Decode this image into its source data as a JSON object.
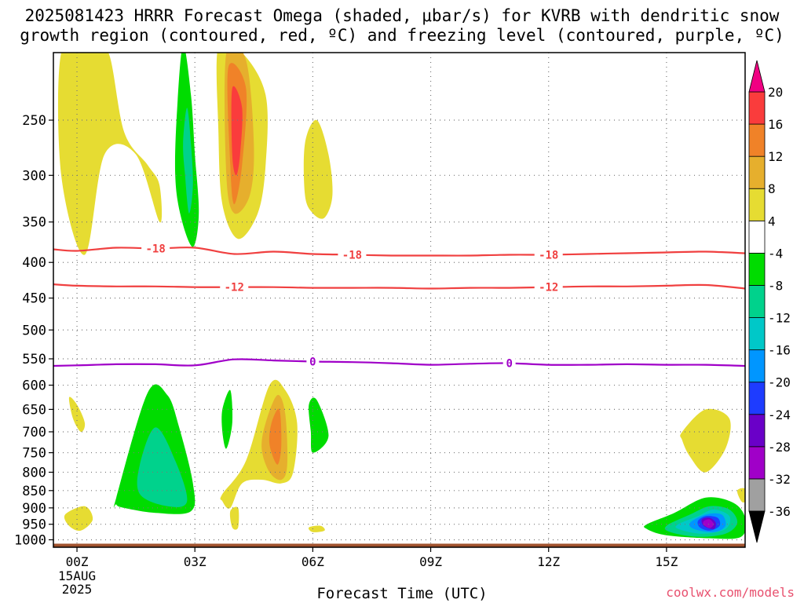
{
  "title_line1": "2025081423 HRRR Forecast Omega (shaded, μbar/s) for KVRB with dendritic snow",
  "title_line2": "growth region (contoured, red, ºC) and freezing level (contoured, purple, ºC)",
  "credit": "coolwx.com/models",
  "chart_data": {
    "type": "heatmap",
    "title": "2025081423 HRRR Forecast Omega (shaded, μbar/s) for KVRB with dendritic snow growth region (contoured, red, ºC) and freezing level (contoured, purple, ºC)",
    "xlabel": "Forecast Time (UTC)",
    "ylabel": "",
    "x_range_hours": [
      -0.6,
      17.0
    ],
    "x_ticks": [
      {
        "hour": 0,
        "label": "00Z",
        "sublabels": [
          "15AUG",
          "2025"
        ]
      },
      {
        "hour": 3,
        "label": "03Z"
      },
      {
        "hour": 6,
        "label": "06Z"
      },
      {
        "hour": 9,
        "label": "09Z"
      },
      {
        "hour": 12,
        "label": "12Z"
      },
      {
        "hour": 15,
        "label": "15Z"
      }
    ],
    "y_axis": {
      "scale": "log",
      "reversed": true,
      "range_mb": [
        200,
        1025
      ],
      "ticks": [
        250,
        300,
        350,
        400,
        450,
        500,
        550,
        600,
        650,
        700,
        750,
        800,
        850,
        900,
        950,
        1000
      ]
    },
    "grid": true,
    "colorbar": {
      "levels": [
        -36,
        -32,
        -28,
        -24,
        -20,
        -16,
        -12,
        -8,
        -4,
        4,
        8,
        12,
        16,
        20
      ],
      "colors": [
        "#a0a0a0",
        "#a000c8",
        "#6a00c8",
        "#1e3cff",
        "#0096ff",
        "#00c8c8",
        "#00d28c",
        "#00dc00",
        "#ffffff",
        "#e6dc32",
        "#e6af2d",
        "#f08228",
        "#fa3c3c",
        "#f00082"
      ],
      "under_color": "#000000",
      "over_color": "#f00082"
    },
    "contours": [
      {
        "name": "-18",
        "color": "#f04040",
        "hours": [
          -0.6,
          0,
          1,
          2,
          3,
          4,
          5,
          6,
          7,
          8,
          9,
          10,
          11,
          12,
          13,
          14,
          15,
          16,
          17
        ],
        "pressure": [
          383,
          385,
          381,
          382,
          381,
          389,
          386,
          389,
          390,
          391,
          391,
          391,
          390,
          390,
          389,
          388,
          387,
          386,
          388
        ],
        "label_hours": [
          2,
          7,
          12
        ]
      },
      {
        "name": "-12",
        "color": "#f04040",
        "hours": [
          -0.6,
          0,
          1,
          2,
          3,
          4,
          5,
          6,
          7,
          8,
          9,
          10,
          11,
          12,
          13,
          14,
          15,
          16,
          17
        ],
        "pressure": [
          430,
          432,
          433,
          433,
          434,
          434,
          434,
          435,
          435,
          435,
          436,
          435,
          435,
          434,
          433,
          433,
          432,
          431,
          436
        ],
        "label_hours": [
          4,
          12
        ]
      },
      {
        "name": "0",
        "color": "#a000c8",
        "hours": [
          -0.6,
          0,
          1,
          2,
          3,
          4,
          5,
          6,
          7,
          8,
          9,
          10,
          11,
          12,
          13,
          14,
          15,
          16,
          17
        ],
        "pressure": [
          563,
          562,
          560,
          560,
          562,
          551,
          553,
          555,
          556,
          558,
          561,
          559,
          558,
          561,
          561,
          560,
          561,
          561,
          563
        ],
        "label_hours": [
          6,
          11
        ]
      }
    ],
    "omega_areas": [
      {
        "value": 4,
        "hours": [
          -0.4,
          0.3,
          0.8,
          1.2,
          1.8,
          2.1,
          2.1,
          1.5,
          0.7,
          0.2,
          -0.4
        ],
        "pressure": [
          200,
          200,
          200,
          260,
          290,
          310,
          350,
          280,
          280,
          390,
          300
        ]
      },
      {
        "value": -4,
        "hours": [
          2.7,
          2.9,
          3.0,
          3.1,
          2.95,
          2.65,
          2.5,
          2.55
        ],
        "pressure": [
          195,
          230,
          280,
          340,
          380,
          345,
          300,
          240
        ]
      },
      {
        "value": -8,
        "hours": [
          2.8,
          2.9,
          2.95,
          2.85,
          2.75,
          2.7
        ],
        "pressure": [
          240,
          270,
          310,
          340,
          300,
          270
        ]
      },
      {
        "value": 4,
        "hours": [
          3.6,
          4.2,
          4.8,
          4.8,
          4.6,
          4.1,
          3.7,
          3.6
        ],
        "pressure": [
          195,
          200,
          230,
          290,
          340,
          370,
          330,
          260
        ]
      },
      {
        "value": 8,
        "hours": [
          3.8,
          4.3,
          4.5,
          4.4,
          4.0,
          3.8
        ],
        "pressure": [
          200,
          205,
          270,
          320,
          340,
          300
        ]
      },
      {
        "value": 12,
        "hours": [
          3.85,
          4.3,
          4.2,
          4.0,
          3.9
        ],
        "pressure": [
          210,
          225,
          290,
          330,
          290
        ]
      },
      {
        "value": 16,
        "hours": [
          3.95,
          4.2,
          4.15,
          4.05,
          3.95
        ],
        "pressure": [
          225,
          240,
          280,
          300,
          280
        ]
      },
      {
        "value": 4,
        "hours": [
          5.8,
          6.1,
          6.4,
          6.5,
          6.3,
          6.0,
          5.8
        ],
        "pressure": [
          270,
          250,
          280,
          320,
          345,
          340,
          320
        ]
      },
      {
        "value": 4,
        "hours": [
          -0.2,
          0.0,
          0.2,
          0.1,
          -0.1
        ],
        "pressure": [
          625,
          640,
          680,
          700,
          670
        ]
      },
      {
        "value": -4,
        "hours": [
          1.0,
          1.8,
          2.3,
          2.6,
          2.95,
          2.9,
          2.0,
          1.2,
          1.0
        ],
        "pressure": [
          870,
          615,
          620,
          690,
          830,
          910,
          915,
          900,
          890
        ]
      },
      {
        "value": -8,
        "hours": [
          1.6,
          2.0,
          2.5,
          2.8,
          2.3,
          1.6
        ],
        "pressure": [
          780,
          690,
          770,
          880,
          895,
          860
        ]
      },
      {
        "value": -4,
        "hours": [
          3.7,
          3.9,
          3.95,
          3.8,
          3.7
        ],
        "pressure": [
          650,
          610,
          680,
          740,
          700
        ]
      },
      {
        "value": 4,
        "hours": [
          3.7,
          4.3,
          4.9,
          5.3,
          5.6,
          5.5,
          5.2,
          4.7,
          4.2,
          3.9,
          3.7
        ],
        "pressure": [
          860,
          770,
          600,
          610,
          680,
          800,
          830,
          820,
          830,
          900,
          880
        ]
      },
      {
        "value": 8,
        "hours": [
          4.8,
          5.1,
          5.3,
          5.35,
          5.2,
          4.9,
          4.7
        ],
        "pressure": [
          680,
          620,
          660,
          780,
          820,
          800,
          740
        ]
      },
      {
        "value": 12,
        "hours": [
          4.95,
          5.15,
          5.2,
          5.1,
          4.9
        ],
        "pressure": [
          680,
          650,
          730,
          780,
          730
        ]
      },
      {
        "value": 4,
        "hours": [
          3.9,
          4.1,
          4.1,
          3.95
        ],
        "pressure": [
          910,
          900,
          960,
          960
        ]
      },
      {
        "value": -4,
        "hours": [
          5.9,
          6.1,
          6.4,
          6.0,
          5.95
        ],
        "pressure": [
          640,
          630,
          710,
          750,
          700
        ]
      },
      {
        "value": 4,
        "hours": [
          -0.3,
          0.2,
          0.4,
          0.1,
          -0.2
        ],
        "pressure": [
          920,
          895,
          935,
          970,
          955
        ]
      },
      {
        "value": 4,
        "hours": [
          5.9,
          6.2,
          6.3,
          6.0
        ],
        "pressure": [
          960,
          955,
          970,
          975
        ]
      },
      {
        "value": 4,
        "hours": [
          15.4,
          16.0,
          16.6,
          16.5,
          16.0,
          15.6,
          15.4
        ],
        "pressure": [
          700,
          650,
          670,
          740,
          800,
          760,
          720
        ]
      },
      {
        "value": 4,
        "hours": [
          16.8,
          17.0,
          17.0,
          16.9
        ],
        "pressure": [
          850,
          845,
          880,
          880
        ]
      },
      {
        "value": -4,
        "hours": [
          14.5,
          15.2,
          16.0,
          16.7,
          17.0,
          16.9,
          16.1,
          15.0,
          14.5
        ],
        "pressure": [
          950,
          915,
          870,
          885,
          930,
          990,
          995,
          985,
          965
        ]
      },
      {
        "value": -8,
        "hours": [
          15.0,
          15.6,
          16.1,
          16.6,
          16.8,
          16.5,
          15.8,
          15.1
        ],
        "pressure": [
          955,
          920,
          895,
          905,
          945,
          980,
          990,
          975
        ]
      },
      {
        "value": -12,
        "hours": [
          15.3,
          15.8,
          16.2,
          16.6,
          16.5,
          15.9,
          15.3
        ],
        "pressure": [
          950,
          925,
          905,
          925,
          965,
          980,
          965
        ]
      },
      {
        "value": -16,
        "hours": [
          15.6,
          16.0,
          16.4,
          16.5,
          16.2,
          15.7
        ],
        "pressure": [
          945,
          920,
          920,
          955,
          975,
          965
        ]
      },
      {
        "value": -20,
        "hours": [
          15.8,
          16.0,
          16.3,
          16.35,
          16.1,
          15.85
        ],
        "pressure": [
          940,
          925,
          930,
          955,
          970,
          960
        ]
      },
      {
        "value": -24,
        "hours": [
          15.9,
          16.1,
          16.25,
          16.2,
          15.95
        ],
        "pressure": [
          935,
          930,
          945,
          965,
          955
        ]
      },
      {
        "value": -28,
        "hours": [
          15.95,
          16.1,
          16.2,
          16.1,
          15.95
        ],
        "pressure": [
          940,
          935,
          950,
          962,
          952
        ]
      }
    ],
    "surface": {
      "color": "#a0522d",
      "pressure": 1013
    }
  }
}
